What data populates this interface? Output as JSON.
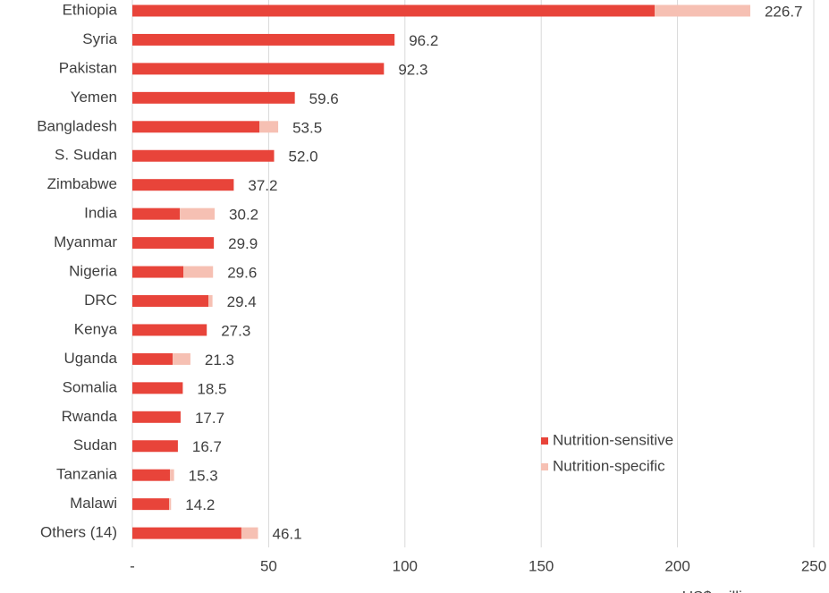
{
  "chart_data": {
    "type": "stacked-barh",
    "categories": [
      "Ethiopia",
      "Syria",
      "Pakistan",
      "Yemen",
      "Bangladesh",
      "S. Sudan",
      "Zimbabwe",
      "India",
      "Myanmar",
      "Nigeria",
      "DRC",
      "Kenya",
      "Uganda",
      "Somalia",
      "Rwanda",
      "Sudan",
      "Tanzania",
      "Malawi",
      "Others (14)"
    ],
    "series": [
      {
        "name": "Nutrition-sensitive",
        "color": "#e8443a",
        "values": [
          191.6,
          96.2,
          92.3,
          59.6,
          46.6,
          52.0,
          37.2,
          17.4,
          29.9,
          18.7,
          27.9,
          27.3,
          14.8,
          18.5,
          17.7,
          16.7,
          13.8,
          13.5,
          40.0
        ]
      },
      {
        "name": "Nutrition-specific",
        "color": "#f6c0b3",
        "values": [
          35.1,
          0,
          0,
          0,
          6.9,
          0,
          0,
          12.8,
          0,
          10.9,
          1.5,
          0,
          6.5,
          0,
          0,
          0,
          1.5,
          0.7,
          6.1
        ]
      }
    ],
    "totals": [
      226.7,
      96.2,
      92.3,
      59.6,
      53.5,
      52.0,
      37.2,
      30.2,
      29.9,
      29.6,
      29.4,
      27.3,
      21.3,
      18.5,
      17.7,
      16.7,
      15.3,
      14.2,
      46.1
    ],
    "total_labels": [
      "226.7",
      "96.2",
      "92.3",
      "59.6",
      "53.5",
      "52.0",
      "37.2",
      "30.2",
      "29.9",
      "29.6",
      "29.4",
      "27.3",
      "21.3",
      "18.5",
      "17.7",
      "16.7",
      "15.3",
      "14.2",
      "46.1"
    ],
    "x_label": "US$ millions",
    "xlim": [
      0,
      250
    ],
    "xticks": [
      {
        "value": 0,
        "label": "-"
      },
      50,
      100,
      150,
      200,
      250
    ],
    "grid": true,
    "legend": "lower right"
  }
}
